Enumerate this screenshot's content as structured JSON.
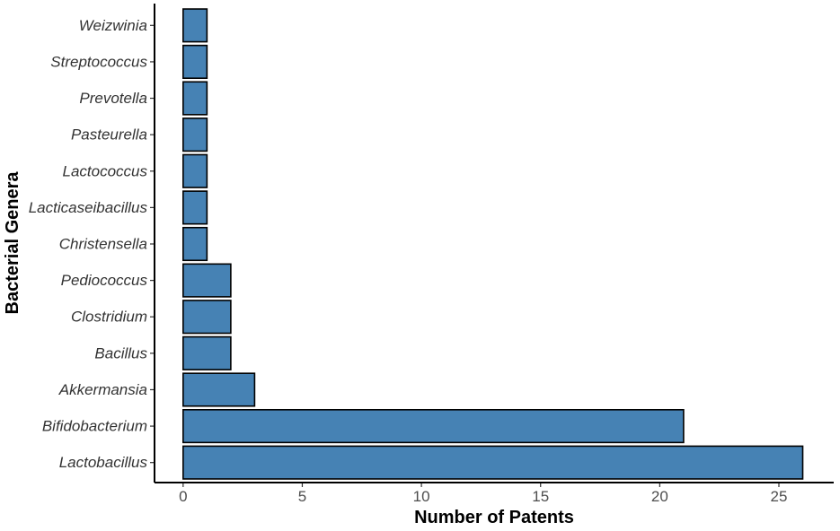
{
  "chart_data": {
    "type": "bar",
    "orientation": "horizontal",
    "title": "",
    "xlabel": "Number of Patents",
    "ylabel": "Bacterial Genera",
    "categories": [
      "Lactobacillus",
      "Bifidobacterium",
      "Akkermansia",
      "Bacillus",
      "Clostridium",
      "Pediococcus",
      "Christensella",
      "Lacticaseibacillus",
      "Lactococcus",
      "Pasteurella",
      "Prevotella",
      "Streptococcus",
      "Weizwinia"
    ],
    "values": [
      26,
      21,
      3,
      2,
      2,
      2,
      1,
      1,
      1,
      1,
      1,
      1,
      1
    ],
    "xlim": [
      -1.2,
      27.3
    ],
    "xticks": [
      0,
      5,
      10,
      15,
      20,
      25
    ],
    "xtick_labels": [
      "0",
      "5",
      "10",
      "15",
      "20",
      "25"
    ],
    "grid": false,
    "legend": "none",
    "colors": {
      "bar_fill": "#4682B4",
      "bar_stroke": "#000000",
      "axis": "#000000"
    }
  }
}
